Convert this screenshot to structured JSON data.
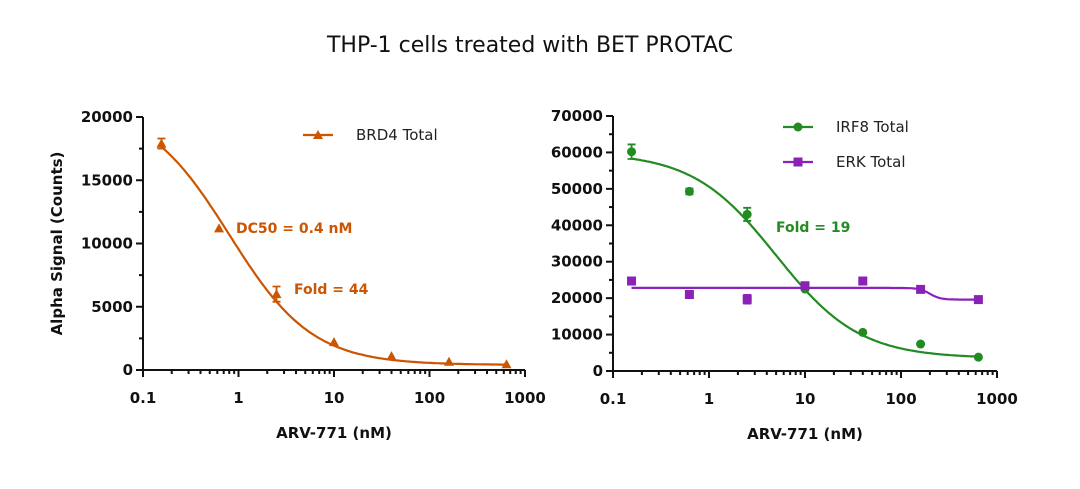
{
  "title": "THP-1 cells treated with BET PROTAC",
  "chart_data": [
    {
      "type": "scatter",
      "xlabel": "ARV-771 (nM)",
      "ylabel": "Alpha Signal (Counts)",
      "xscale": "log",
      "xlim": [
        0.1,
        1000
      ],
      "ylim": [
        0,
        20000
      ],
      "xticks": [
        "0.1",
        "1",
        "10",
        "100",
        "1000"
      ],
      "yticks": [
        "0",
        "5000",
        "10000",
        "15000",
        "20000"
      ],
      "ytick_values": [
        0,
        5000,
        10000,
        15000,
        20000
      ],
      "xtick_values": [
        0.1,
        1,
        10,
        100,
        1000
      ],
      "grid": false,
      "legend_position": "top-right",
      "series": [
        {
          "name": "BRD4 Total",
          "color": "#cc5500",
          "marker": "triangle",
          "x": [
            0.156,
            0.625,
            2.5,
            10,
            40,
            160,
            640
          ],
          "y": [
            17900,
            11200,
            6000,
            2200,
            1100,
            650,
            450
          ],
          "error": [
            400,
            0,
            600,
            0,
            0,
            0,
            0
          ]
        }
      ],
      "annotations": [
        "DC50 = 0.4 nM",
        "Fold = 44"
      ]
    },
    {
      "type": "scatter",
      "xlabel": "ARV-771 (nM)",
      "xscale": "log",
      "xlim": [
        0.1,
        1000
      ],
      "ylim": [
        0,
        70000
      ],
      "xticks": [
        "0.1",
        "1",
        "10",
        "100",
        "1000"
      ],
      "xtick_values": [
        0.1,
        1,
        10,
        100,
        1000
      ],
      "yticks": [
        "0",
        "10000",
        "20000",
        "30000",
        "40000",
        "50000",
        "60000",
        "70000"
      ],
      "ytick_values": [
        0,
        10000,
        20000,
        30000,
        40000,
        50000,
        60000,
        70000
      ],
      "grid": false,
      "legend_position": "top-right",
      "series": [
        {
          "name": "IRF8 Total",
          "color": "#228b22",
          "marker": "circle",
          "x": [
            0.156,
            0.625,
            2.5,
            10,
            40,
            160,
            640
          ],
          "y": [
            60200,
            49300,
            43000,
            22500,
            10600,
            7400,
            3800
          ],
          "error": [
            2000,
            800,
            1800,
            0,
            0,
            0,
            0
          ]
        },
        {
          "name": "ERK Total",
          "color": "#8b22b8",
          "marker": "square",
          "x": [
            0.156,
            0.625,
            2.5,
            10,
            40,
            160,
            640
          ],
          "y": [
            24700,
            21000,
            19700,
            23400,
            24700,
            22400,
            19600
          ],
          "error": [
            0,
            800,
            1200,
            0,
            0,
            0,
            0
          ]
        }
      ],
      "annotations": [
        "Fold = 19"
      ]
    }
  ]
}
